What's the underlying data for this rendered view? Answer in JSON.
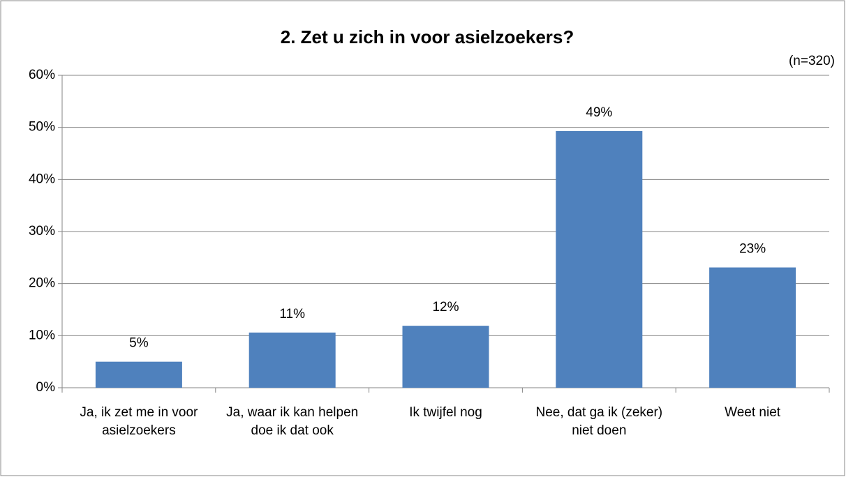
{
  "chart_data": {
    "type": "bar",
    "title": "2. Zet u zich in voor asielzoekers?",
    "subtitle": "(n=320)",
    "categories": [
      "Ja, ik zet me in voor asielzoekers",
      "Ja, waar ik kan helpen doe ik dat ook",
      "Ik twijfel nog",
      "Nee, dat ga ik (zeker) niet doen",
      "Weet niet"
    ],
    "values": [
      5,
      10.6,
      11.9,
      49.3,
      23.1
    ],
    "value_labels": [
      "5%",
      "11%",
      "12%",
      "49%",
      "23%"
    ],
    "color": "#4f81bd",
    "ylim": [
      0,
      60
    ],
    "yticks": [
      {
        "value": 0,
        "label": "0%"
      },
      {
        "value": 10,
        "label": "10%"
      },
      {
        "value": 20,
        "label": "20%"
      },
      {
        "value": 30,
        "label": "30%"
      },
      {
        "value": 40,
        "label": "40%"
      },
      {
        "value": 50,
        "label": "50%"
      },
      {
        "value": 60,
        "label": "60%"
      }
    ],
    "grid": true
  }
}
